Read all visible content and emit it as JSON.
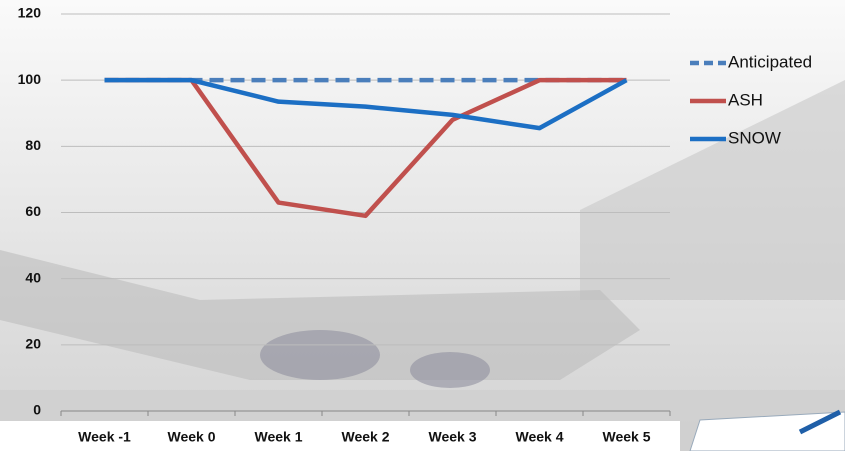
{
  "chart_data": {
    "type": "line",
    "categories": [
      "Week -1",
      "Week 0",
      "Week 1",
      "Week 2",
      "Week 3",
      "Week 4",
      "Week 5"
    ],
    "series": [
      {
        "name": "Anticipated",
        "color": "#4a7ebb",
        "style": "dashed",
        "values": [
          100,
          100,
          100,
          100,
          100,
          100,
          100
        ]
      },
      {
        "name": "ASH",
        "color": "#c0504d",
        "style": "solid",
        "values": [
          100,
          100,
          63,
          59,
          88,
          100,
          100
        ]
      },
      {
        "name": "SNOW",
        "color": "#1c6fc4",
        "style": "solid",
        "values": [
          100,
          100,
          93.5,
          92,
          89.5,
          85.5,
          100
        ]
      }
    ],
    "ylim": [
      0,
      120
    ],
    "yticks": [
      0,
      20,
      40,
      60,
      80,
      100,
      120
    ],
    "grid": true,
    "legend": "right"
  }
}
